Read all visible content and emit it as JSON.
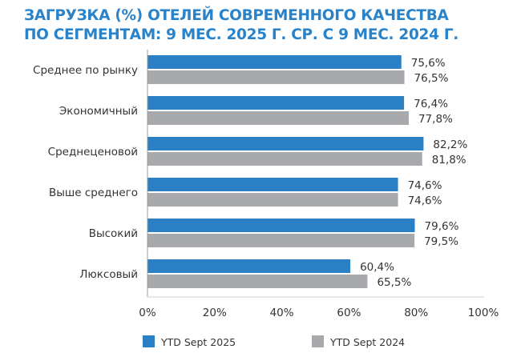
{
  "chart_data": {
    "type": "bar",
    "orientation": "horizontal",
    "title_lines": [
      "ЗАГРУЗКА (%) ОТЕЛЕЙ СОВРЕМЕННОГО КАЧЕСТВА",
      "ПО СЕГМЕНТАМ: 9 МЕС. 2025 Г. СР. С 9 МЕС. 2024 Г."
    ],
    "categories": [
      "Среднее по рынку",
      "Экономичный",
      "Среднеценовой",
      "Выше среднего",
      "Высокий",
      "Люксовый"
    ],
    "series": [
      {
        "name": "YTD Sept 2025",
        "color": "#2b7fc4",
        "values": [
          75.6,
          76.4,
          82.2,
          74.6,
          79.6,
          60.4
        ],
        "labels": [
          "75,6%",
          "76,4%",
          "82,2%",
          "74,6%",
          "79,6%",
          "60,4%"
        ]
      },
      {
        "name": "YTD Sept 2024",
        "color": "#a8a9ad",
        "values": [
          76.5,
          77.8,
          81.8,
          74.6,
          79.5,
          65.5
        ],
        "labels": [
          "76,5%",
          "77,8%",
          "81,8%",
          "74,6%",
          "79,5%",
          "65,5%"
        ]
      }
    ],
    "xlim": [
      0,
      100
    ],
    "xticks": [
      "0%",
      "20%",
      "40%",
      "60%",
      "80%",
      "100%"
    ],
    "xlabel": "",
    "ylabel": "",
    "grid": false,
    "legend_position": "bottom"
  }
}
